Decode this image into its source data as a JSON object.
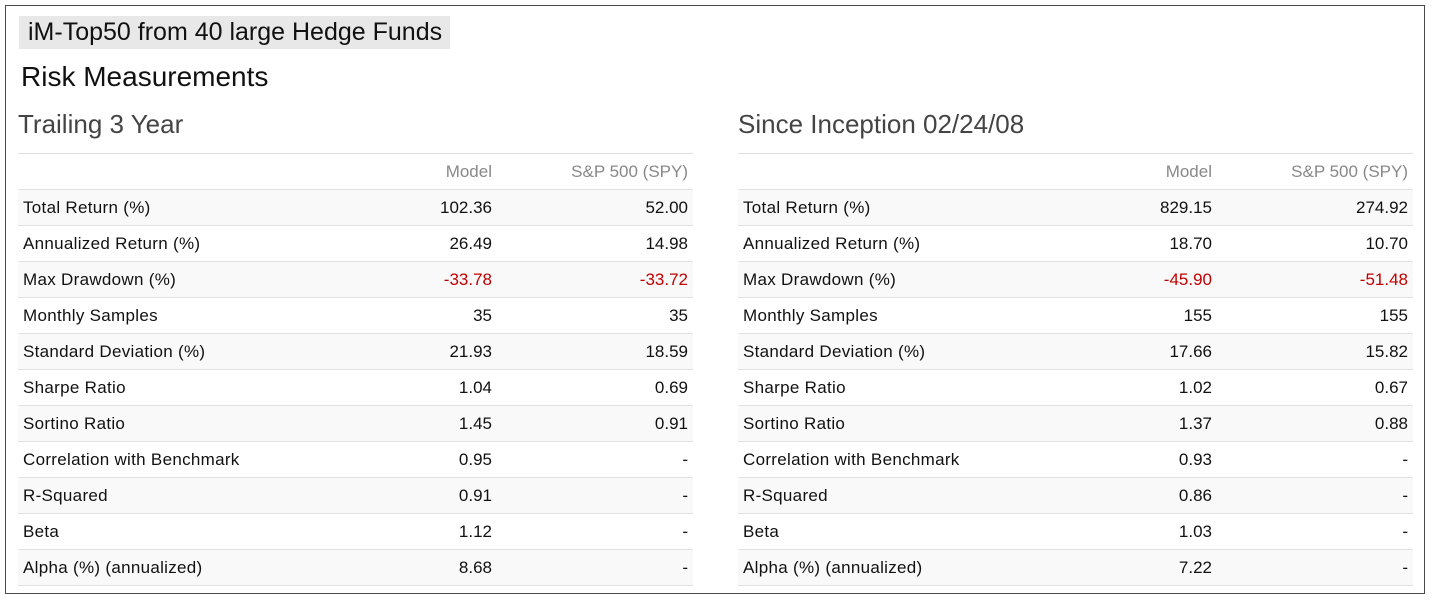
{
  "header": {
    "title": "iM-Top50 from 40 large Hedge Funds",
    "subtitle": "Risk Measurements"
  },
  "colors": {
    "negative": "#c00000",
    "title_bg": "#e8e8e8"
  },
  "columns": {
    "model": "Model",
    "benchmark": "S&P 500 (SPY)"
  },
  "panels": [
    {
      "title": "Trailing 3 Year",
      "rows": [
        {
          "label": "Total Return (%)",
          "model": "102.36",
          "benchmark": "52.00"
        },
        {
          "label": "Annualized Return (%)",
          "model": "26.49",
          "benchmark": "14.98"
        },
        {
          "label": "Max Drawdown (%)",
          "model": "-33.78",
          "benchmark": "-33.72"
        },
        {
          "label": "Monthly Samples",
          "model": "35",
          "benchmark": "35"
        },
        {
          "label": "Standard Deviation (%)",
          "model": "21.93",
          "benchmark": "18.59"
        },
        {
          "label": "Sharpe Ratio",
          "model": "1.04",
          "benchmark": "0.69"
        },
        {
          "label": "Sortino Ratio",
          "model": "1.45",
          "benchmark": "0.91"
        },
        {
          "label": "Correlation with Benchmark",
          "model": "0.95",
          "benchmark": "-"
        },
        {
          "label": "R-Squared",
          "model": "0.91",
          "benchmark": "-"
        },
        {
          "label": "Beta",
          "model": "1.12",
          "benchmark": "-"
        },
        {
          "label": "Alpha (%) (annualized)",
          "model": "8.68",
          "benchmark": "-"
        }
      ]
    },
    {
      "title": "Since Inception 02/24/08",
      "rows": [
        {
          "label": "Total Return (%)",
          "model": "829.15",
          "benchmark": "274.92"
        },
        {
          "label": "Annualized Return (%)",
          "model": "18.70",
          "benchmark": "10.70"
        },
        {
          "label": "Max Drawdown (%)",
          "model": "-45.90",
          "benchmark": "-51.48"
        },
        {
          "label": "Monthly Samples",
          "model": "155",
          "benchmark": "155"
        },
        {
          "label": "Standard Deviation (%)",
          "model": "17.66",
          "benchmark": "15.82"
        },
        {
          "label": "Sharpe Ratio",
          "model": "1.02",
          "benchmark": "0.67"
        },
        {
          "label": "Sortino Ratio",
          "model": "1.37",
          "benchmark": "0.88"
        },
        {
          "label": "Correlation with Benchmark",
          "model": "0.93",
          "benchmark": "-"
        },
        {
          "label": "R-Squared",
          "model": "0.86",
          "benchmark": "-"
        },
        {
          "label": "Beta",
          "model": "1.03",
          "benchmark": "-"
        },
        {
          "label": "Alpha (%) (annualized)",
          "model": "7.22",
          "benchmark": "-"
        }
      ]
    }
  ]
}
